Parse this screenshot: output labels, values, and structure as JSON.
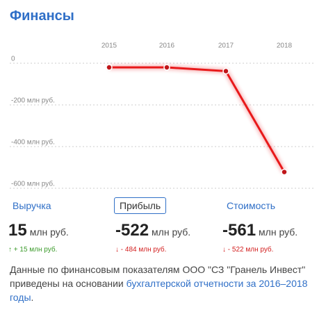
{
  "header": {
    "title": "Финансы"
  },
  "chart_data": {
    "type": "line",
    "categories": [
      "2015",
      "2016",
      "2017",
      "2018"
    ],
    "series": [
      {
        "name": "Прибыль",
        "color": "#e8191a",
        "values": [
          -20,
          -20,
          -38,
          -522
        ]
      }
    ],
    "ylim": [
      -600,
      0
    ],
    "yticks": [
      0,
      {
        "value": -200,
        "label": "-200 млн руб."
      },
      {
        "value": -400,
        "label": "-400 млн руб."
      },
      {
        "value": -600,
        "label": "-600 млн руб."
      }
    ],
    "grid": true
  },
  "metrics": [
    {
      "label": "Выручка",
      "value": 15,
      "unit": "млн руб.",
      "change": "+ 15 млн руб.",
      "trend": "up"
    },
    {
      "label": "Прибыль",
      "value": -522,
      "unit": "млн руб.",
      "change": "- 484 млн руб.",
      "trend": "down",
      "selected": true
    },
    {
      "label": "Стоимость",
      "value": -561,
      "unit": "млн руб.",
      "change": "- 522 млн руб.",
      "trend": "down"
    }
  ],
  "footer": {
    "text_before": "Данные по финансовым показателям ООО \"СЗ \"Гранель Инвест\" приведены на основании ",
    "link": "бухгалтерской отчетности за 2016–2018 годы",
    "text_after": "."
  }
}
